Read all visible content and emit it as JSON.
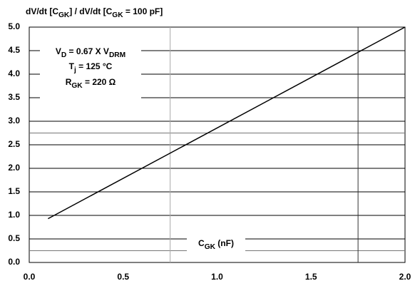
{
  "chart_data": {
    "type": "line",
    "title": [
      "dV/dt [C",
      "GK",
      "] / dV/dt [C",
      "GK",
      " = 100 pF]"
    ],
    "xlabel": [
      "C",
      "GK",
      " (nF)"
    ],
    "annotations": [
      [
        "V",
        "D",
        " = 0.67 X V",
        "DRM"
      ],
      [
        "T",
        "j",
        " = 125 °C"
      ],
      [
        "R",
        "GK",
        " = 220 Ω"
      ]
    ],
    "x": [
      0.1,
      2.0
    ],
    "series": [
      {
        "color": "#000000",
        "values": [
          0.93,
          5.0
        ]
      }
    ],
    "xlim": [
      0,
      2
    ],
    "ylim": [
      0,
      5
    ],
    "xticks": [
      {
        "value": 0,
        "label": "0.0"
      },
      0.5,
      {
        "value": 1,
        "label": "1.0"
      },
      1.5,
      {
        "value": 2,
        "label": "2.0"
      }
    ],
    "yticks": [
      {
        "value": 0,
        "label": "0.0"
      },
      0.5,
      {
        "value": 1,
        "label": "1.0"
      },
      1.5,
      {
        "value": 2,
        "label": "2.0"
      },
      2.5,
      {
        "value": 3,
        "label": "3.0"
      },
      3.5,
      {
        "value": 4,
        "label": "4.0"
      },
      4.5,
      {
        "value": 5,
        "label": "5.0"
      }
    ],
    "minor_xgrid": [
      0.75,
      1.75
    ],
    "minor_ygrid": [
      0.25,
      2.75
    ],
    "grid": true
  }
}
